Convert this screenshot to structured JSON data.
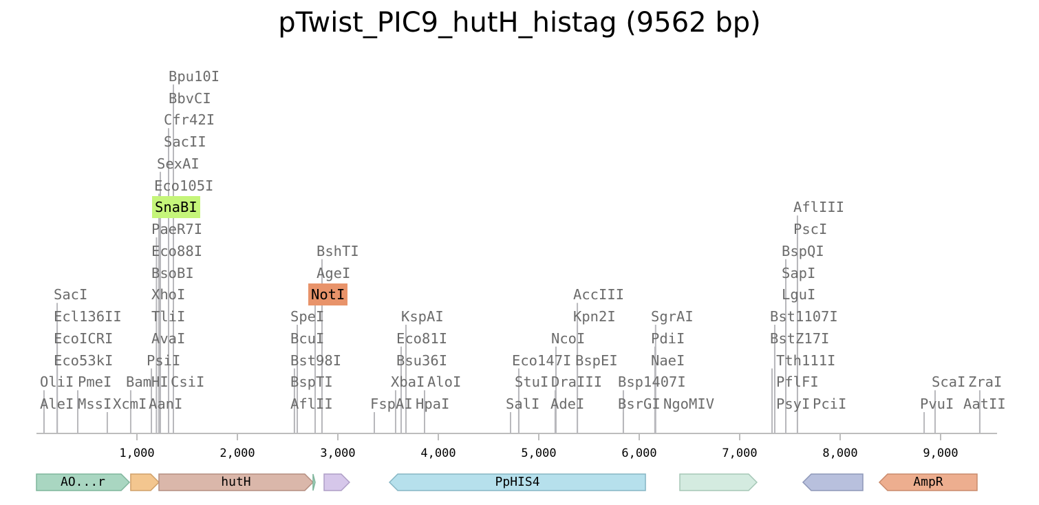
{
  "title": "pTwist_PIC9_hutH_histag (9562 bp)",
  "sequence_length": 9562,
  "axis": {
    "ticks": [
      1000,
      2000,
      3000,
      4000,
      5000,
      6000,
      7000,
      8000,
      9000
    ],
    "tick_labels": [
      "1,000",
      "2,000",
      "3,000",
      "4,000",
      "5,000",
      "6,000",
      "7,000",
      "8,000",
      "9,000"
    ]
  },
  "colors": {
    "cut_line": "#b8b8bc",
    "axis": "#bdbdbd",
    "label": "#6b6b6b",
    "highlight_snabi": "#c5f57a",
    "highlight_noti": "#e8936a"
  },
  "enzymes": [
    {
      "name": "AleI",
      "position": 75
    },
    {
      "name": "OliI",
      "position": 75
    },
    {
      "name": "Eco53kI",
      "position": 206
    },
    {
      "name": "EcoICRI",
      "position": 206
    },
    {
      "name": "Ecl136II",
      "position": 206
    },
    {
      "name": "SacI",
      "position": 206
    },
    {
      "name": "MssI",
      "position": 411
    },
    {
      "name": "PmeI",
      "position": 411
    },
    {
      "name": "XcmI",
      "position": 705
    },
    {
      "name": "BamHI",
      "position": 938
    },
    {
      "name": "AanI",
      "position": 1144
    },
    {
      "name": "PsiI",
      "position": 1144
    },
    {
      "name": "CsiI",
      "position": 1195
    },
    {
      "name": "AvaI",
      "position": 1195
    },
    {
      "name": "TliI",
      "position": 1195
    },
    {
      "name": "XhoI",
      "position": 1195
    },
    {
      "name": "BsoBI",
      "position": 1195
    },
    {
      "name": "Eco88I",
      "position": 1195
    },
    {
      "name": "PaeR7I",
      "position": 1195
    },
    {
      "name": "SnaBI",
      "position": 1219,
      "highlight": "#c5f57a"
    },
    {
      "name": "Eco105I",
      "position": 1219
    },
    {
      "name": "SexAI",
      "position": 1233
    },
    {
      "name": "SacII",
      "position": 1315
    },
    {
      "name": "Cfr42I",
      "position": 1315
    },
    {
      "name": "BbvCI",
      "position": 1363
    },
    {
      "name": "Bpu10I",
      "position": 1363
    },
    {
      "name": "AflII",
      "position": 2568
    },
    {
      "name": "BspTI",
      "position": 2568
    },
    {
      "name": "Bst98I",
      "position": 2568
    },
    {
      "name": "BcuI",
      "position": 2596
    },
    {
      "name": "SpeI",
      "position": 2596
    },
    {
      "name": "NotI",
      "position": 2774,
      "highlight": "#e8936a"
    },
    {
      "name": "AgeI",
      "position": 2842
    },
    {
      "name": "BshTI",
      "position": 2842
    },
    {
      "name": "FspAI",
      "position": 3363
    },
    {
      "name": "XbaI",
      "position": 3575
    },
    {
      "name": "Bsu36I",
      "position": 3630
    },
    {
      "name": "Eco81I",
      "position": 3630
    },
    {
      "name": "HpaI",
      "position": 3678
    },
    {
      "name": "KspAI",
      "position": 3678
    },
    {
      "name": "AloI",
      "position": 3863
    },
    {
      "name": "SalI",
      "position": 4719
    },
    {
      "name": "StuI",
      "position": 4801
    },
    {
      "name": "Eco147I",
      "position": 4801
    },
    {
      "name": "AdeI",
      "position": 5164
    },
    {
      "name": "DraIII",
      "position": 5164
    },
    {
      "name": "NcoI",
      "position": 5171
    },
    {
      "name": "BspEI",
      "position": 5384
    },
    {
      "name": "Kpn2I",
      "position": 5384
    },
    {
      "name": "AccIII",
      "position": 5384
    },
    {
      "name": "BsrGI",
      "position": 5842
    },
    {
      "name": "Bsp1407I",
      "position": 5842
    },
    {
      "name": "NgoMIV",
      "position": 6157
    },
    {
      "name": "NaeI",
      "position": 6157
    },
    {
      "name": "PdiI",
      "position": 6157
    },
    {
      "name": "SgrAI",
      "position": 6163
    },
    {
      "name": "PsyI",
      "position": 7322
    },
    {
      "name": "PflFI",
      "position": 7322
    },
    {
      "name": "Tth111I",
      "position": 7322
    },
    {
      "name": "BstZ17I",
      "position": 7349
    },
    {
      "name": "Bst1107I",
      "position": 7349
    },
    {
      "name": "LguI",
      "position": 7459
    },
    {
      "name": "SapI",
      "position": 7459
    },
    {
      "name": "BspQI",
      "position": 7459
    },
    {
      "name": "PciI",
      "position": 7575
    },
    {
      "name": "PscI",
      "position": 7575
    },
    {
      "name": "AflIII",
      "position": 7575
    },
    {
      "name": "PvuI",
      "position": 8836
    },
    {
      "name": "ScaI",
      "position": 8945
    },
    {
      "name": "AatII",
      "position": 9390
    },
    {
      "name": "ZraI",
      "position": 9390
    }
  ],
  "features": [
    {
      "label": "AO...r",
      "start": 0,
      "end": 925,
      "direction": "forward",
      "color": "#a9d6c1",
      "stroke": "#7fb59c"
    },
    {
      "label": "",
      "start": 938,
      "end": 1219,
      "direction": "forward",
      "color": "#f3c68f",
      "stroke": "#d0a068"
    },
    {
      "label": "hutH",
      "start": 1219,
      "end": 2753,
      "direction": "forward",
      "color": "#dab7aa",
      "stroke": "#b48e80"
    },
    {
      "label": "",
      "start": 2753,
      "end": 2774,
      "direction": "forward",
      "color": "#a9d6c1",
      "stroke": "#7fb59c"
    },
    {
      "label": "",
      "start": 2863,
      "end": 3116,
      "direction": "forward",
      "color": "#d6c7ea",
      "stroke": "#ae9ec6"
    },
    {
      "label": "PpHIS4",
      "start": 3514,
      "end": 6062,
      "direction": "reverse",
      "color": "#b6e0ec",
      "stroke": "#86b6c4"
    },
    {
      "label": "",
      "start": 6404,
      "end": 7171,
      "direction": "forward",
      "color": "#d4ebe0",
      "stroke": "#a5c7b6"
    },
    {
      "label": "",
      "start": 7630,
      "end": 8226,
      "direction": "reverse",
      "color": "#b8c0dd",
      "stroke": "#8e97b8"
    },
    {
      "label": "AmpR",
      "start": 8390,
      "end": 9363,
      "direction": "reverse",
      "color": "#edae8f",
      "stroke": "#c98a6b"
    }
  ]
}
